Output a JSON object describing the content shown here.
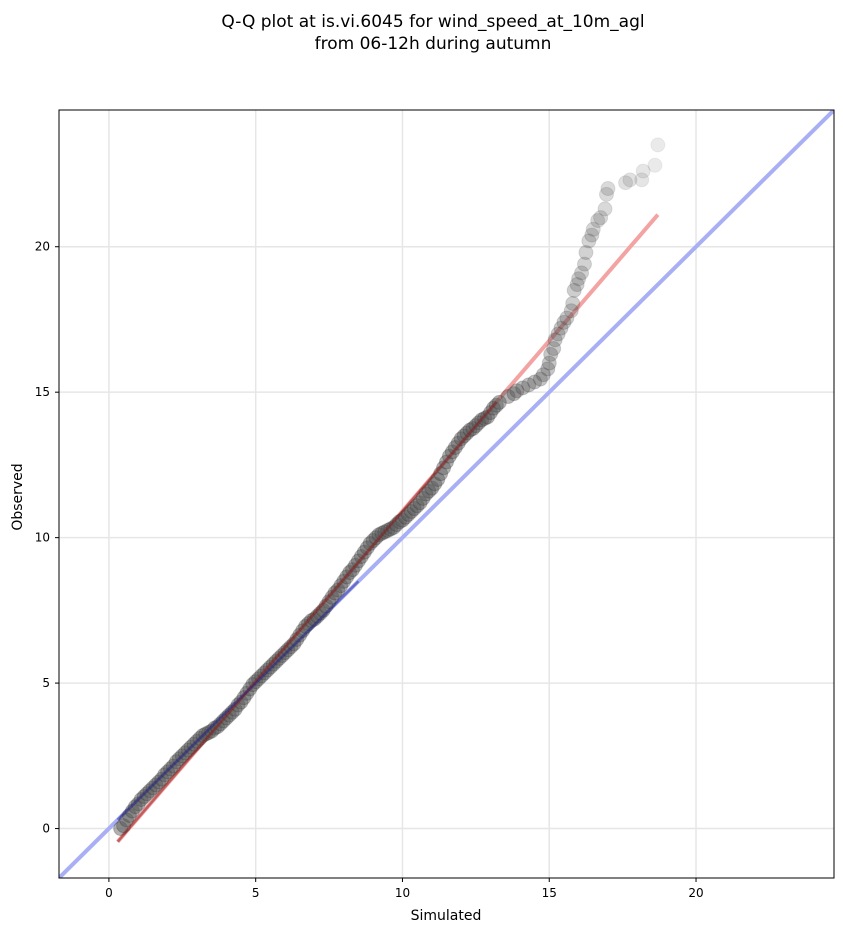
{
  "chart_data": {
    "type": "scatter",
    "title_line1": "Q-Q plot at is.vi.6045 for wind_speed_at_10m_agl",
    "title_line2": "from 06-12h during autumn",
    "xlabel": "Simulated",
    "ylabel": "Observed",
    "xlim": [
      -1.7,
      24.7
    ],
    "ylim": [
      -1.7,
      24.7
    ],
    "xticks": [
      0,
      5,
      10,
      15,
      20
    ],
    "yticks": [
      0,
      5,
      10,
      15,
      20
    ],
    "grid": true,
    "points_fade_from_x": 13.5,
    "points": [
      [
        0.4,
        0.0
      ],
      [
        0.5,
        0.1
      ],
      [
        0.6,
        0.3
      ],
      [
        0.7,
        0.45
      ],
      [
        0.8,
        0.6
      ],
      [
        0.9,
        0.75
      ],
      [
        1.0,
        0.85
      ],
      [
        1.1,
        1.0
      ],
      [
        1.2,
        1.1
      ],
      [
        1.3,
        1.2
      ],
      [
        1.4,
        1.3
      ],
      [
        1.5,
        1.4
      ],
      [
        1.6,
        1.5
      ],
      [
        1.7,
        1.6
      ],
      [
        1.8,
        1.7
      ],
      [
        1.9,
        1.85
      ],
      [
        2.0,
        1.95
      ],
      [
        2.1,
        2.05
      ],
      [
        2.2,
        2.15
      ],
      [
        2.3,
        2.3
      ],
      [
        2.4,
        2.4
      ],
      [
        2.5,
        2.5
      ],
      [
        2.6,
        2.6
      ],
      [
        2.7,
        2.7
      ],
      [
        2.8,
        2.8
      ],
      [
        2.9,
        2.9
      ],
      [
        3.0,
        3.0
      ],
      [
        3.1,
        3.1
      ],
      [
        3.2,
        3.2
      ],
      [
        3.3,
        3.25
      ],
      [
        3.4,
        3.3
      ],
      [
        3.5,
        3.35
      ],
      [
        3.6,
        3.45
      ],
      [
        3.7,
        3.5
      ],
      [
        3.8,
        3.6
      ],
      [
        3.9,
        3.7
      ],
      [
        4.0,
        3.8
      ],
      [
        4.1,
        3.9
      ],
      [
        4.2,
        4.0
      ],
      [
        4.3,
        4.1
      ],
      [
        4.4,
        4.25
      ],
      [
        4.5,
        4.35
      ],
      [
        4.6,
        4.5
      ],
      [
        4.7,
        4.65
      ],
      [
        4.8,
        4.8
      ],
      [
        4.9,
        4.95
      ],
      [
        5.0,
        5.05
      ],
      [
        5.1,
        5.15
      ],
      [
        5.2,
        5.25
      ],
      [
        5.3,
        5.35
      ],
      [
        5.4,
        5.45
      ],
      [
        5.5,
        5.55
      ],
      [
        5.6,
        5.65
      ],
      [
        5.7,
        5.75
      ],
      [
        5.8,
        5.85
      ],
      [
        5.9,
        5.95
      ],
      [
        6.0,
        6.05
      ],
      [
        6.1,
        6.15
      ],
      [
        6.2,
        6.25
      ],
      [
        6.3,
        6.35
      ],
      [
        6.4,
        6.5
      ],
      [
        6.5,
        6.65
      ],
      [
        6.6,
        6.8
      ],
      [
        6.7,
        6.95
      ],
      [
        6.8,
        7.05
      ],
      [
        6.9,
        7.15
      ],
      [
        7.0,
        7.2
      ],
      [
        7.1,
        7.3
      ],
      [
        7.2,
        7.4
      ],
      [
        7.3,
        7.5
      ],
      [
        7.4,
        7.65
      ],
      [
        7.5,
        7.8
      ],
      [
        7.6,
        7.95
      ],
      [
        7.7,
        8.1
      ],
      [
        7.8,
        8.2
      ],
      [
        7.9,
        8.35
      ],
      [
        8.0,
        8.5
      ],
      [
        8.1,
        8.65
      ],
      [
        8.2,
        8.8
      ],
      [
        8.3,
        8.9
      ],
      [
        8.4,
        9.05
      ],
      [
        8.5,
        9.2
      ],
      [
        8.6,
        9.35
      ],
      [
        8.7,
        9.5
      ],
      [
        8.8,
        9.65
      ],
      [
        8.9,
        9.8
      ],
      [
        9.0,
        9.9
      ],
      [
        9.1,
        10.0
      ],
      [
        9.2,
        10.1
      ],
      [
        9.3,
        10.15
      ],
      [
        9.4,
        10.2
      ],
      [
        9.5,
        10.25
      ],
      [
        9.6,
        10.3
      ],
      [
        9.7,
        10.35
      ],
      [
        9.8,
        10.45
      ],
      [
        9.9,
        10.55
      ],
      [
        10.0,
        10.6
      ],
      [
        10.1,
        10.7
      ],
      [
        10.2,
        10.8
      ],
      [
        10.3,
        10.9
      ],
      [
        10.4,
        11.0
      ],
      [
        10.5,
        11.1
      ],
      [
        10.6,
        11.2
      ],
      [
        10.7,
        11.35
      ],
      [
        10.8,
        11.5
      ],
      [
        10.9,
        11.6
      ],
      [
        11.0,
        11.7
      ],
      [
        11.1,
        11.85
      ],
      [
        11.2,
        12.0
      ],
      [
        11.3,
        12.2
      ],
      [
        11.4,
        12.4
      ],
      [
        11.5,
        12.6
      ],
      [
        11.6,
        12.8
      ],
      [
        11.7,
        12.95
      ],
      [
        11.8,
        13.1
      ],
      [
        11.9,
        13.25
      ],
      [
        12.0,
        13.4
      ],
      [
        12.1,
        13.5
      ],
      [
        12.2,
        13.6
      ],
      [
        12.3,
        13.7
      ],
      [
        12.4,
        13.75
      ],
      [
        12.5,
        13.85
      ],
      [
        12.6,
        13.95
      ],
      [
        12.7,
        14.05
      ],
      [
        12.8,
        14.1
      ],
      [
        12.9,
        14.15
      ],
      [
        13.0,
        14.3
      ],
      [
        13.1,
        14.45
      ],
      [
        13.2,
        14.55
      ],
      [
        13.3,
        14.65
      ],
      [
        13.6,
        14.85
      ],
      [
        13.8,
        14.95
      ],
      [
        13.9,
        15.05
      ],
      [
        14.1,
        15.15
      ],
      [
        14.3,
        15.25
      ],
      [
        14.5,
        15.35
      ],
      [
        14.7,
        15.45
      ],
      [
        14.8,
        15.6
      ],
      [
        14.95,
        15.8
      ],
      [
        15.0,
        16.0
      ],
      [
        15.05,
        16.3
      ],
      [
        15.15,
        16.5
      ],
      [
        15.2,
        16.8
      ],
      [
        15.3,
        17.0
      ],
      [
        15.4,
        17.2
      ],
      [
        15.5,
        17.4
      ],
      [
        15.6,
        17.55
      ],
      [
        15.75,
        17.8
      ],
      [
        15.8,
        18.05
      ],
      [
        15.85,
        18.5
      ],
      [
        15.95,
        18.7
      ],
      [
        16.0,
        18.9
      ],
      [
        16.1,
        19.1
      ],
      [
        16.2,
        19.4
      ],
      [
        16.25,
        19.8
      ],
      [
        16.35,
        20.2
      ],
      [
        16.45,
        20.4
      ],
      [
        16.5,
        20.6
      ],
      [
        16.65,
        20.9
      ],
      [
        16.75,
        21.0
      ],
      [
        16.9,
        21.3
      ],
      [
        16.95,
        21.8
      ],
      [
        17.0,
        22.0
      ],
      [
        17.6,
        22.2
      ],
      [
        17.75,
        22.3
      ],
      [
        18.15,
        22.3
      ],
      [
        18.2,
        22.6
      ],
      [
        18.6,
        22.8
      ],
      [
        18.7,
        23.5
      ]
    ],
    "fit_line": {
      "x0": 0.3,
      "y0": -0.45,
      "x1": 18.7,
      "y1": 21.1
    },
    "reference_line": {
      "slope": 1,
      "intercept": 0
    },
    "colors": {
      "point": "#555555",
      "point_edge": "#222222",
      "fit_line": "#f4a3a3",
      "fit_line_dark": "#8b1a1a",
      "reference_line": "#a9aff4",
      "reference_line_dark": "#1a1a8b",
      "grid": "#e6e6e6",
      "axes": "#000000"
    }
  }
}
